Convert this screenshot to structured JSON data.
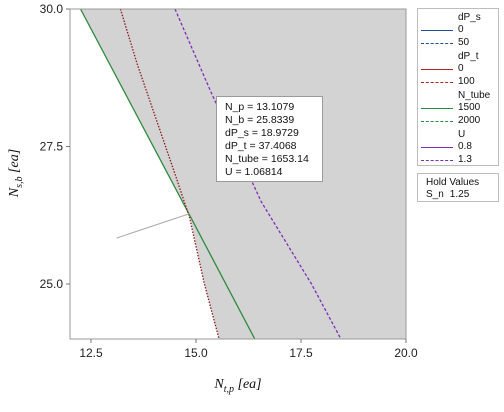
{
  "chart_data": {
    "type": "contour-overlay",
    "xlabel": "N_{t,p} [ea]",
    "ylabel": "N_{s,b} [ea]",
    "xlim": [
      12.0,
      20.0
    ],
    "ylim": [
      24.0,
      30.0
    ],
    "x_ticks": [
      "12.5",
      "15.0",
      "17.5",
      "20.0"
    ],
    "y_ticks": [
      "25.0",
      "27.5",
      "30.0"
    ],
    "feasible_region_color": "#d3d3d3",
    "series": [
      {
        "name": "N_tube 1500",
        "color": "#2e8b3e",
        "dash": "solid",
        "points": [
          [
            12.25,
            30.0
          ],
          [
            14.85,
            26.25
          ],
          [
            16.4,
            24.0
          ]
        ]
      },
      {
        "name": "dP_t 100",
        "color": "#8b1a1a",
        "dash": "dotted",
        "points": [
          [
            13.2,
            30.0
          ],
          [
            13.6,
            29.0
          ],
          [
            14.05,
            28.0
          ],
          [
            14.5,
            27.0
          ],
          [
            14.85,
            26.2
          ],
          [
            15.2,
            25.0
          ],
          [
            15.55,
            24.0
          ]
        ]
      },
      {
        "name": "U 1.3",
        "color": "#7b2fb5",
        "dash": "dashed",
        "points": [
          [
            14.5,
            30.0
          ],
          [
            15.35,
            28.5
          ],
          [
            16.55,
            26.5
          ],
          [
            17.75,
            25.0
          ],
          [
            18.45,
            24.0
          ]
        ]
      },
      {
        "name": "crosshair",
        "color": "#aaaaaa",
        "dash": "solid",
        "points": [
          [
            13.1079,
            25.8339
          ],
          [
            14.85,
            26.28
          ]
        ]
      }
    ],
    "legend": {
      "groups": [
        {
          "title": "dP_s",
          "items": [
            {
              "label": "0",
              "color": "#1f4e9c",
              "dash": "solid"
            },
            {
              "label": "50",
              "color": "#1f4e9c",
              "dash": "dashed"
            }
          ]
        },
        {
          "title": "dP_t",
          "items": [
            {
              "label": "0",
              "color": "#b22222",
              "dash": "solid"
            },
            {
              "label": "100",
              "color": "#b22222",
              "dash": "dashed"
            }
          ]
        },
        {
          "title": "N_tube",
          "items": [
            {
              "label": "1500",
              "color": "#2e8b3e",
              "dash": "solid"
            },
            {
              "label": "2000",
              "color": "#2e8b3e",
              "dash": "dashed"
            }
          ]
        },
        {
          "title": "U",
          "items": [
            {
              "label": "0.8",
              "color": "#7b2fb5",
              "dash": "solid"
            },
            {
              "label": "1.3",
              "color": "#7b2fb5",
              "dash": "dashed"
            }
          ]
        }
      ]
    },
    "hold_values": {
      "title": "Hold Values",
      "name": "S_n",
      "value": "1.25"
    },
    "annotation": [
      "N_p = 13.1079",
      "N_b = 25.8339",
      "dP_s = 18.9729",
      "dP_t = 37.4068",
      "N_tube = 1653.14",
      "U = 1.06814"
    ]
  }
}
